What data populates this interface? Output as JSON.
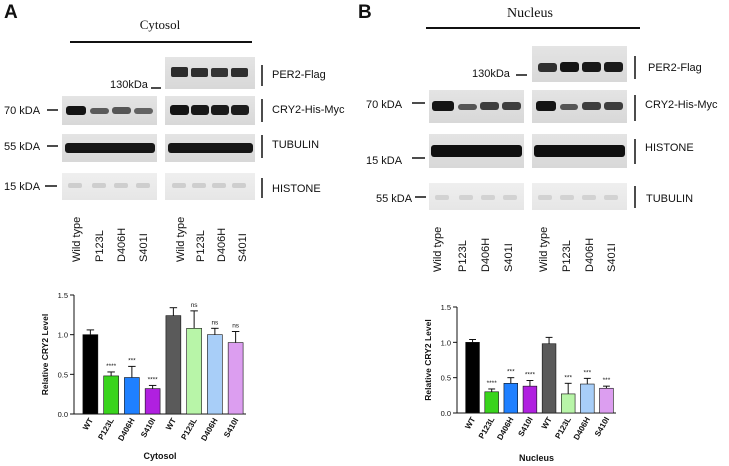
{
  "panels": [
    {
      "letter": "A",
      "compartment": "Cytosol",
      "marker_130": "130kDa",
      "bands": [
        {
          "label": "PER2-Flag",
          "kda": ""
        },
        {
          "label": "CRY2-His-Myc",
          "kda": "70 kDA"
        },
        {
          "label": "TUBULIN",
          "kda": "55 kDA"
        },
        {
          "label": "HISTONE",
          "kda": "15 kDA"
        }
      ],
      "lanes": [
        "Wild type",
        "P123L",
        "D406H",
        "S401I",
        "Wild type",
        "P123L",
        "D406H",
        "S401I"
      ]
    },
    {
      "letter": "B",
      "compartment": "Nucleus",
      "marker_130": "130kDa",
      "bands": [
        {
          "label": "PER2-Flag",
          "kda": ""
        },
        {
          "label": "CRY2-His-Myc",
          "kda": "70 kDA"
        },
        {
          "label": "HISTONE",
          "kda": "15 kDA"
        },
        {
          "label": "TUBULIN",
          "kda": "55 kDA"
        }
      ],
      "lanes": [
        "Wild type",
        "P123L",
        "D406H",
        "S401I",
        "Wild type",
        "P123L",
        "D406H",
        "S401I"
      ]
    }
  ],
  "chart_data": [
    {
      "type": "bar",
      "title": "",
      "xlabel": "Cytosol",
      "ylabel": "Relative CRY2 Level",
      "ylim": [
        0,
        1.5
      ],
      "yticks": [
        "0.0",
        "0.5",
        "1.0",
        "1.5"
      ],
      "categories": [
        "WT",
        "P123L",
        "D406H",
        "S410I",
        "WT",
        "P123L",
        "D406H",
        "S410I"
      ],
      "values": [
        1.0,
        0.48,
        0.46,
        0.32,
        1.24,
        1.08,
        1.0,
        0.9
      ],
      "errors": [
        0.06,
        0.05,
        0.14,
        0.04,
        0.1,
        0.22,
        0.08,
        0.14
      ],
      "significance": [
        "",
        "****",
        "***",
        "****",
        "",
        "ns",
        "ns",
        "ns"
      ],
      "colors": [
        "#000000",
        "#39d41c",
        "#1f80ff",
        "#b020e0",
        "#5a5a5a",
        "#b8f5a8",
        "#a8cef8",
        "#dc9ef0"
      ],
      "grid": false
    },
    {
      "type": "bar",
      "title": "",
      "xlabel": "Nucleus",
      "ylabel": "Relative CRY2 Level",
      "ylim": [
        0,
        1.5
      ],
      "yticks": [
        "0.0",
        "0.5",
        "1.0",
        "1.5"
      ],
      "categories": [
        "WT",
        "P123L",
        "D406H",
        "S410I",
        "WT",
        "P123L",
        "D406H",
        "S410I"
      ],
      "values": [
        1.0,
        0.3,
        0.42,
        0.38,
        0.98,
        0.27,
        0.41,
        0.35
      ],
      "errors": [
        0.04,
        0.04,
        0.08,
        0.08,
        0.09,
        0.15,
        0.08,
        0.03
      ],
      "significance": [
        "",
        "****",
        "***",
        "****",
        "",
        "***",
        "***",
        "***"
      ],
      "colors": [
        "#000000",
        "#39d41c",
        "#1f80ff",
        "#b020e0",
        "#5a5a5a",
        "#b8f5a8",
        "#a8cef8",
        "#dc9ef0"
      ],
      "grid": false
    }
  ]
}
